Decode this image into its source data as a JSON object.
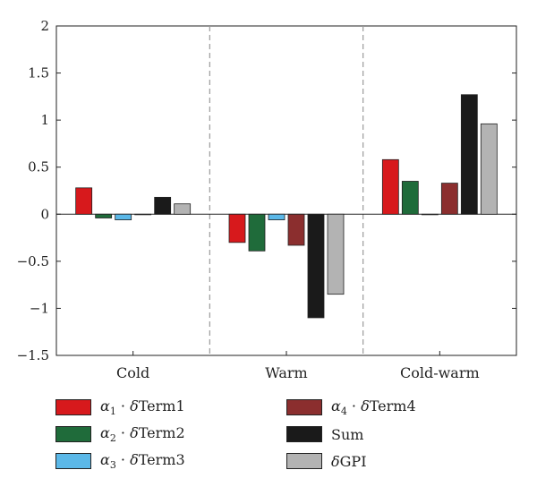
{
  "chart_data": {
    "type": "bar",
    "categories": [
      "Cold",
      "Warm",
      "Cold-warm"
    ],
    "series": [
      {
        "name": "α1 · δTerm1",
        "color": "#d7191c",
        "values": [
          0.28,
          -0.3,
          0.58
        ]
      },
      {
        "name": "α2 · δTerm2",
        "color": "#1f6b3a",
        "values": [
          -0.04,
          -0.39,
          0.35
        ]
      },
      {
        "name": "α3 · δTerm3",
        "color": "#5bb8e8",
        "values": [
          -0.06,
          -0.06,
          0.0
        ]
      },
      {
        "name": "α4 · δTerm4",
        "color": "#8b2e2e",
        "values": [
          0.0,
          -0.33,
          0.33
        ]
      },
      {
        "name": "Sum",
        "color": "#1a1a1a",
        "values": [
          0.18,
          -1.1,
          1.27
        ]
      },
      {
        "name": "δGPI",
        "color": "#b3b3b3",
        "values": [
          0.11,
          -0.85,
          0.96
        ]
      }
    ],
    "title": "",
    "xlabel": "",
    "ylabel": "",
    "ylim": [
      -1.5,
      2
    ],
    "yticks": [
      "2",
      "1.5",
      "1",
      "0.5",
      "0",
      "−0.5",
      "−1",
      "−1.5"
    ],
    "ytick_values": [
      2,
      1.5,
      1,
      0.5,
      0,
      -0.5,
      -1,
      -1.5
    ],
    "group_separators": "dashed gray vertical lines between groups",
    "legend_placement": "bottom, two columns",
    "legend": [
      {
        "greek": "α",
        "sub": "1",
        "dot": " · ",
        "delta": "δ",
        "text": "Term1",
        "color": "#d7191c"
      },
      {
        "greek": "α",
        "sub": "2",
        "dot": " · ",
        "delta": "δ",
        "text": "Term2",
        "color": "#1f6b3a"
      },
      {
        "greek": "α",
        "sub": "3",
        "dot": " · ",
        "delta": "δ",
        "text": "Term3",
        "color": "#5bb8e8"
      },
      {
        "greek": "α",
        "sub": "4",
        "dot": " · ",
        "delta": "δ",
        "text": "Term4",
        "color": "#8b2e2e"
      },
      {
        "greek": "",
        "sub": "",
        "dot": "",
        "delta": "",
        "text": "Sum",
        "color": "#1a1a1a"
      },
      {
        "greek": "",
        "sub": "",
        "dot": "",
        "delta": "δ",
        "text": "GPI",
        "color": "#b3b3b3"
      }
    ]
  }
}
